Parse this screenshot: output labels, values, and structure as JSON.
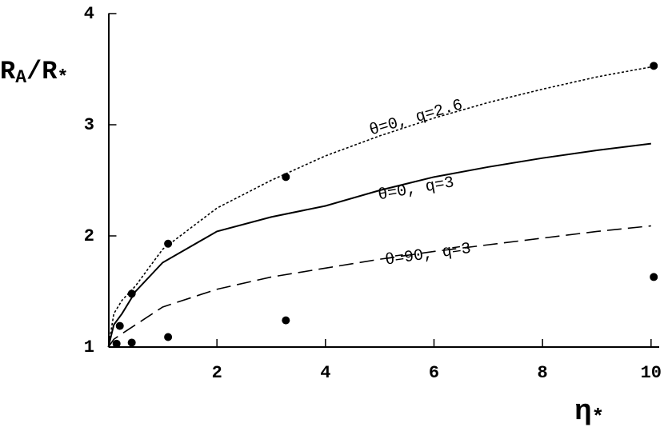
{
  "chart_data": {
    "type": "line",
    "x_label": [
      {
        "text": "η"
      },
      {
        "text": "*",
        "sub": true
      }
    ],
    "y_label": [
      {
        "text": "R"
      },
      {
        "text": "A",
        "sub": true
      },
      {
        "text": "/R"
      },
      {
        "text": "*",
        "sub": true
      }
    ],
    "xlim": [
      0,
      10.15
    ],
    "ylim": [
      1,
      4
    ],
    "xticks": [
      2,
      4,
      6,
      8,
      10
    ],
    "yticks": [
      1,
      2,
      3,
      4
    ],
    "series": [
      {
        "name": "θ=0, q=2.6",
        "color": "#000000",
        "dash": "dotted",
        "x": [
          0,
          0.1,
          0.25,
          0.5,
          1,
          2,
          3,
          4,
          5,
          6,
          7,
          8,
          9,
          10
        ],
        "values": [
          1,
          1.3,
          1.42,
          1.55,
          1.88,
          2.25,
          2.5,
          2.72,
          2.9,
          3.06,
          3.2,
          3.32,
          3.43,
          3.52
        ]
      },
      {
        "name": "θ=0, q=3",
        "color": "#000000",
        "dash": "solid",
        "x": [
          0,
          0.1,
          0.25,
          0.5,
          1,
          2,
          3,
          4,
          5,
          6,
          7,
          8,
          9,
          10
        ],
        "values": [
          1,
          1.2,
          1.3,
          1.5,
          1.76,
          2.04,
          2.17,
          2.27,
          2.41,
          2.53,
          2.62,
          2.7,
          2.77,
          2.83
        ]
      },
      {
        "name": "θ=90, q=3",
        "color": "#000000",
        "dash": "dashed",
        "x": [
          0,
          0.1,
          0.25,
          0.5,
          1,
          2,
          3,
          4,
          5,
          6,
          7,
          8,
          9,
          10
        ],
        "values": [
          1,
          1.07,
          1.12,
          1.2,
          1.36,
          1.52,
          1.63,
          1.71,
          1.79,
          1.86,
          1.92,
          1.98,
          2.04,
          2.09
        ]
      }
    ],
    "points": {
      "color": "#000000",
      "x": [
        0.15,
        0.21,
        0.43,
        0.43,
        1.1,
        1.1,
        3.27,
        3.27,
        10.05,
        10.05
      ],
      "values": [
        1.03,
        1.19,
        1.48,
        1.04,
        1.93,
        1.09,
        2.53,
        1.24,
        3.53,
        1.63
      ]
    }
  }
}
